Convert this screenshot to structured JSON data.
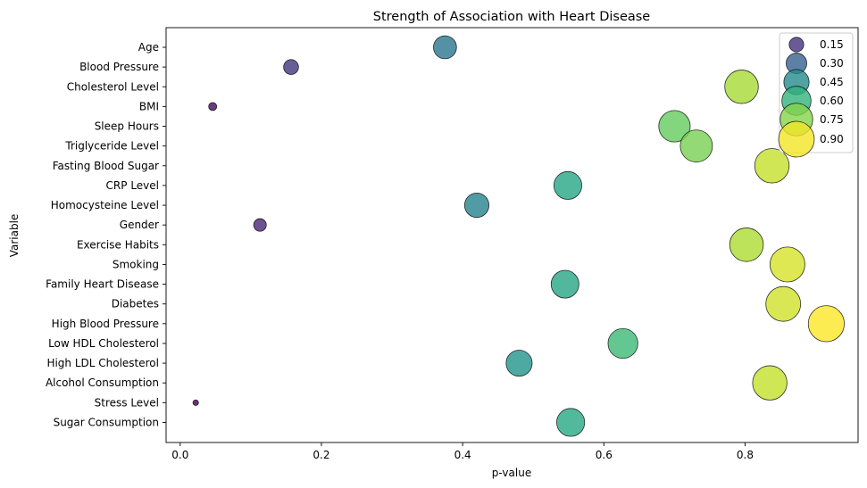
{
  "chart_data": {
    "type": "scatter",
    "title": "Strength of Association with Heart Disease",
    "xlabel": "p-value",
    "ylabel": "Variable",
    "xlim": [
      -0.02,
      0.96
    ],
    "xticks": [
      "0.0",
      "0.2",
      "0.4",
      "0.6",
      "0.8"
    ],
    "xtick_values": [
      0.0,
      0.2,
      0.4,
      0.6,
      0.8
    ],
    "grid": false,
    "colormap": "viridis",
    "point_alpha": 0.8,
    "legend_placement": "upper right",
    "legend_entries": [
      "0.15",
      "0.30",
      "0.45",
      "0.60",
      "0.75",
      "0.90"
    ],
    "legend_values": [
      0.15,
      0.3,
      0.45,
      0.6,
      0.75,
      0.9
    ],
    "points": [
      {
        "variable": "Age",
        "p_value": 0.375
      },
      {
        "variable": "Blood Pressure",
        "p_value": 0.157
      },
      {
        "variable": "Cholesterol Level",
        "p_value": 0.795
      },
      {
        "variable": "BMI",
        "p_value": 0.046
      },
      {
        "variable": "Sleep Hours",
        "p_value": 0.7
      },
      {
        "variable": "Triglyceride Level",
        "p_value": 0.731
      },
      {
        "variable": "Fasting Blood Sugar",
        "p_value": 0.838
      },
      {
        "variable": "CRP Level",
        "p_value": 0.549
      },
      {
        "variable": "Homocysteine Level",
        "p_value": 0.42
      },
      {
        "variable": "Gender",
        "p_value": 0.113
      },
      {
        "variable": "Exercise Habits",
        "p_value": 0.802
      },
      {
        "variable": "Smoking",
        "p_value": 0.86
      },
      {
        "variable": "Family Heart Disease",
        "p_value": 0.545
      },
      {
        "variable": "Diabetes",
        "p_value": 0.854
      },
      {
        "variable": "High Blood Pressure",
        "p_value": 0.915
      },
      {
        "variable": "Low HDL Cholesterol",
        "p_value": 0.627
      },
      {
        "variable": "High LDL Cholesterol",
        "p_value": 0.48
      },
      {
        "variable": "Alcohol Consumption",
        "p_value": 0.835
      },
      {
        "variable": "Stress Level",
        "p_value": 0.022
      },
      {
        "variable": "Sugar Consumption",
        "p_value": 0.553
      }
    ]
  }
}
